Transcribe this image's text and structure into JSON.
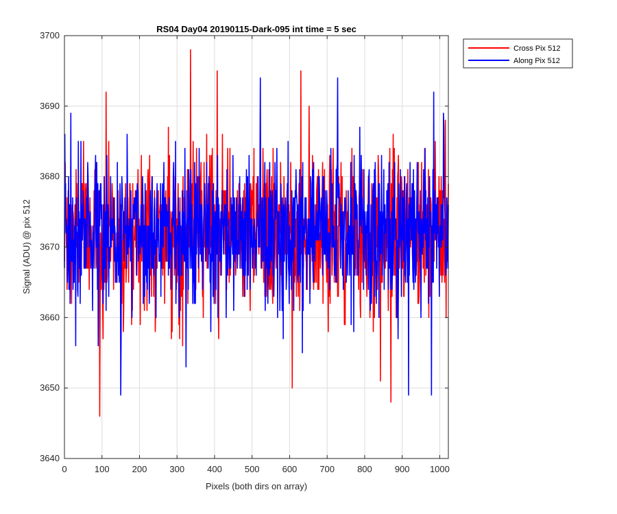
{
  "chart_data": {
    "type": "line",
    "title": "RS04 Day04 20190115-Dark-095 int time = 5 sec",
    "xlabel": "Pixels (both dirs on array)",
    "ylabel": "Signal (ADU) @ pix 512",
    "xlim": [
      0,
      1023
    ],
    "ylim": [
      3640,
      3700
    ],
    "xticks": [
      0,
      100,
      200,
      300,
      400,
      500,
      600,
      700,
      800,
      900,
      1000
    ],
    "yticks": [
      3640,
      3650,
      3660,
      3670,
      3680,
      3690,
      3700
    ],
    "grid": true,
    "legend_position": "outside-top-right",
    "noise_summary": {
      "n_points": 1024,
      "mean": 3672,
      "typical_range": [
        3658,
        3686
      ]
    },
    "series": [
      {
        "name": "Cross Pix 512",
        "color": "#ff0000",
        "extremes": [
          {
            "x": 94,
            "y": 3646
          },
          {
            "x": 111,
            "y": 3692
          },
          {
            "x": 336,
            "y": 3698
          },
          {
            "x": 407,
            "y": 3695
          },
          {
            "x": 607,
            "y": 3650
          },
          {
            "x": 630,
            "y": 3695
          },
          {
            "x": 652,
            "y": 3690
          },
          {
            "x": 842,
            "y": 3651
          },
          {
            "x": 870,
            "y": 3648
          },
          {
            "x": 1015,
            "y": 3688
          }
        ]
      },
      {
        "name": "Along Pix 512",
        "color": "#0000ff",
        "extremes": [
          {
            "x": 17,
            "y": 3689
          },
          {
            "x": 150,
            "y": 3649
          },
          {
            "x": 324,
            "y": 3653
          },
          {
            "x": 522,
            "y": 3694
          },
          {
            "x": 634,
            "y": 3655
          },
          {
            "x": 728,
            "y": 3694
          },
          {
            "x": 917,
            "y": 3649
          },
          {
            "x": 978,
            "y": 3649
          },
          {
            "x": 984,
            "y": 3692
          },
          {
            "x": 1010,
            "y": 3689
          }
        ]
      }
    ]
  }
}
